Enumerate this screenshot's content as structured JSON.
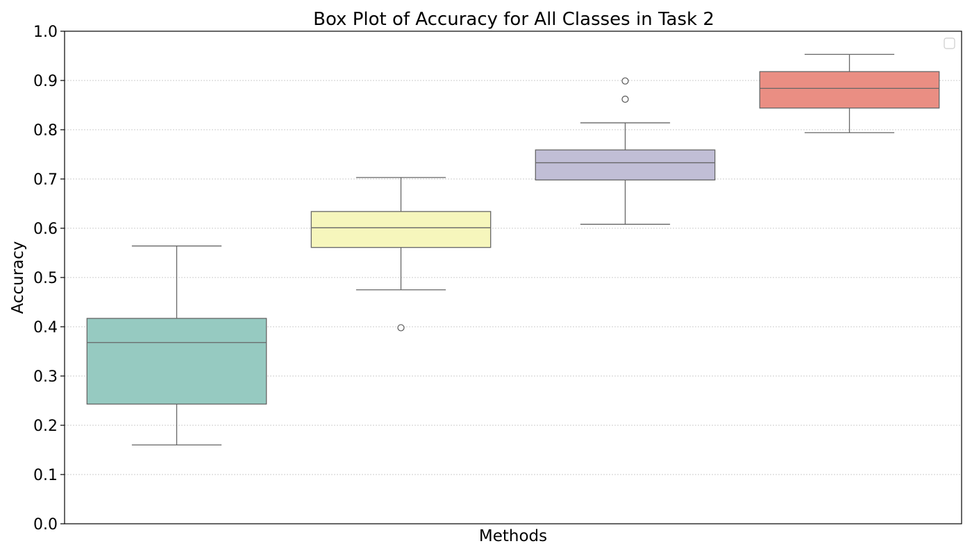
{
  "chart_data": {
    "type": "box",
    "title": "Box Plot of Accuracy for All Classes in Task 2",
    "xlabel": "Methods",
    "ylabel": "Accuracy",
    "ylim": [
      0.0,
      1.0
    ],
    "yticks": [
      "0.0",
      "0.1",
      "0.2",
      "0.3",
      "0.4",
      "0.5",
      "0.6",
      "0.7",
      "0.8",
      "0.9",
      "1.0"
    ],
    "grid": "horizontal dotted",
    "legend": {
      "placement": "top-right",
      "entries": []
    },
    "series": [
      {
        "min": 0.16,
        "q1": 0.243,
        "median": 0.368,
        "q3": 0.417,
        "max": 0.564,
        "outliers": [],
        "color": "#96cac1"
      },
      {
        "min": 0.475,
        "q1": 0.561,
        "median": 0.601,
        "q3": 0.634,
        "max": 0.703,
        "outliers": [
          0.398
        ],
        "color": "#f6f6bc"
      },
      {
        "min": 0.608,
        "q1": 0.698,
        "median": 0.733,
        "q3": 0.759,
        "max": 0.814,
        "outliers": [
          0.862,
          0.899
        ],
        "color": "#c1bed6"
      },
      {
        "min": 0.794,
        "q1": 0.844,
        "median": 0.884,
        "q3": 0.918,
        "max": 0.953,
        "outliers": [],
        "color": "#ea8e83"
      }
    ]
  }
}
